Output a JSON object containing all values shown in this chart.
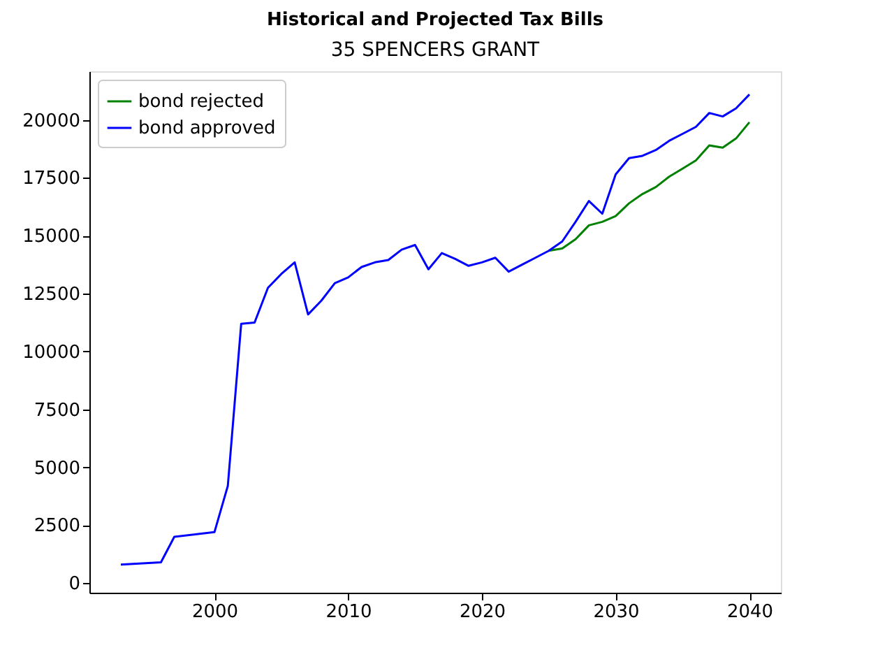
{
  "chart_data": {
    "type": "line",
    "title": "Historical and Projected Tax Bills",
    "subtitle": "35 SPENCERS GRANT",
    "xlim": [
      1990.65,
      2042.35
    ],
    "xticks": [
      2000,
      2010,
      2020,
      2030,
      2040
    ],
    "ylim": [
      -415,
      22100
    ],
    "yticks": [
      0,
      2500,
      5000,
      7500,
      10000,
      12500,
      15000,
      17500,
      20000
    ],
    "grid": false,
    "legend": "top left",
    "marker": "none",
    "line_style": "solid",
    "series": [
      {
        "name": "bond rejected",
        "color": "#008000",
        "x": [
          2025,
          2026,
          2027,
          2028,
          2029,
          2030,
          2031,
          2032,
          2033,
          2034,
          2035,
          2036,
          2037,
          2038,
          2039,
          2040
        ],
        "values": [
          14350,
          14450,
          14850,
          15450,
          15600,
          15850,
          16400,
          16800,
          17100,
          17550,
          17900,
          18250,
          18900,
          18800,
          19200,
          19900
        ]
      },
      {
        "name": "bond approved",
        "color": "#0000ff",
        "x": [
          1993,
          1996,
          1997,
          2000,
          2001,
          2002,
          2003,
          2004,
          2005,
          2006,
          2007,
          2008,
          2009,
          2010,
          2011,
          2012,
          2013,
          2014,
          2015,
          2016,
          2017,
          2018,
          2019,
          2020,
          2021,
          2022,
          2023,
          2024,
          2025,
          2026,
          2027,
          2028,
          2029,
          2030,
          2031,
          2032,
          2033,
          2034,
          2035,
          2036,
          2037,
          2038,
          2039,
          2040
        ],
        "values": [
          800,
          900,
          2000,
          2200,
          4200,
          11200,
          11250,
          12750,
          13350,
          13850,
          11600,
          12200,
          12950,
          13200,
          13650,
          13850,
          13950,
          14400,
          14600,
          13550,
          14250,
          14000,
          13700,
          13850,
          14050,
          13450,
          13750,
          14050,
          14350,
          14750,
          15600,
          16500,
          15950,
          17650,
          18350,
          18450,
          18700,
          19100,
          19400,
          19700,
          20300,
          20150,
          20500,
          21100
        ]
      }
    ]
  }
}
